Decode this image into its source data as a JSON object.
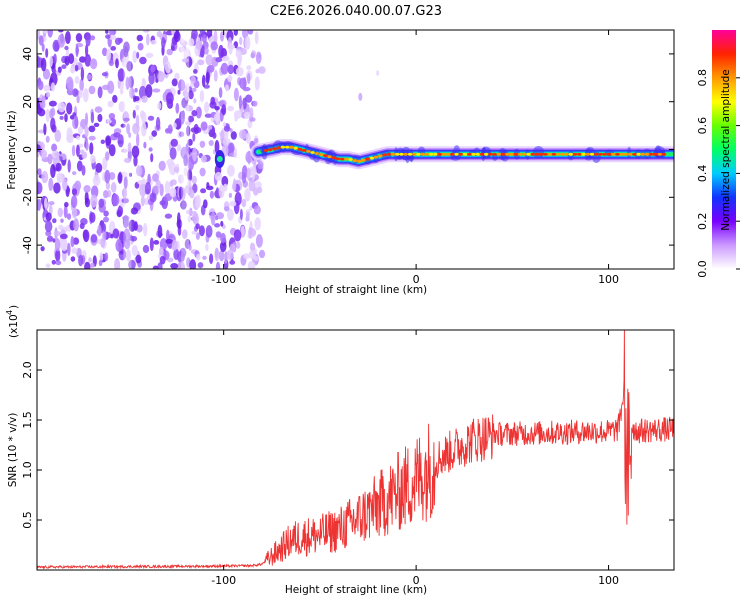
{
  "title": "C2E6.2026.040.00.07.G23",
  "chart_data": [
    {
      "type": "heatmap",
      "name": "spectrogram",
      "xlabel": "Height of straight line (km)",
      "ylabel": "Frequency (Hz)",
      "xlim": [
        -197,
        134
      ],
      "ylim": [
        -50,
        50
      ],
      "x_ticks": [
        -100,
        0,
        100
      ],
      "y_ticks": [
        -40,
        -20,
        0,
        20,
        40
      ],
      "noise_region_x": [
        -197,
        -80
      ],
      "signal_track": {
        "x": [
          -82,
          -75,
          -70,
          -65,
          -60,
          -55,
          -50,
          -45,
          -40,
          -35,
          -30,
          -25,
          -20,
          -15,
          -10,
          -5,
          0,
          10,
          20,
          40,
          60,
          80,
          100,
          110,
          120,
          134
        ],
        "y": [
          -1,
          0,
          1,
          1,
          0,
          -1,
          -2,
          -3,
          -4,
          -4,
          -5,
          -4,
          -3,
          -2,
          -2,
          -2,
          -2,
          -2,
          -2,
          -2,
          -2,
          -2,
          -2,
          -2,
          -2,
          -2
        ]
      },
      "isolated_spot": {
        "x": -102,
        "y": -4
      },
      "colorbar": {
        "label": "Normalized spectral amplitude",
        "range": [
          0.0,
          1.0
        ],
        "ticks": [
          0.0,
          0.2,
          0.4,
          0.6,
          0.8
        ],
        "colors": [
          "#ffffff",
          "#cc99ff",
          "#7700ff",
          "#1133ff",
          "#00ccff",
          "#00ff66",
          "#66ff00",
          "#ffff00",
          "#ff9900",
          "#ff2200",
          "#ff0099"
        ]
      }
    },
    {
      "type": "line",
      "name": "snr",
      "xlabel": "Height of straight line (km)",
      "ylabel": "SNR (10 * v/v)",
      "exponent_label": "(x10",
      "exponent": "4",
      "xlim": [
        -197,
        134
      ],
      "ylim": [
        0,
        24000
      ],
      "x_ticks": [
        -100,
        0,
        100
      ],
      "y_ticks": [
        0.5,
        1.0,
        1.5,
        2.0
      ],
      "color": "#ee3333",
      "x": [
        -197,
        -150,
        -100,
        -85,
        -80,
        -75,
        -70,
        -65,
        -60,
        -50,
        -40,
        -30,
        -20,
        -10,
        0,
        10,
        20,
        30,
        40,
        60,
        80,
        90,
        100,
        105,
        108,
        110,
        112,
        115,
        120,
        134
      ],
      "y": [
        300,
        350,
        400,
        450,
        600,
        1500,
        2300,
        3200,
        3500,
        3700,
        4300,
        5400,
        6700,
        8100,
        9500,
        11200,
        12300,
        13300,
        13700,
        13800,
        13900,
        14000,
        13950,
        14200,
        18000,
        10000,
        14500,
        14000,
        14100,
        14200
      ]
    }
  ]
}
